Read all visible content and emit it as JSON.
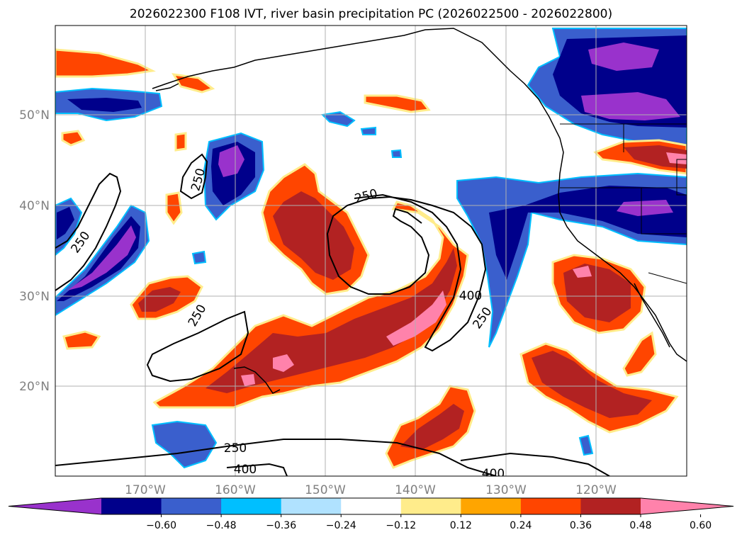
{
  "title": "2026022300 F108 IVT, river basin precipitation PC (2026022500 - 2026022800)",
  "map": {
    "lat_labels": [
      "50°N",
      "40°N",
      "30°N",
      "20°N"
    ],
    "lon_labels": [
      "170°W",
      "160°W",
      "150°W",
      "140°W",
      "130°W",
      "120°W"
    ],
    "contour_labels": [
      "250",
      "250",
      "250",
      "250",
      "250",
      "250",
      "400",
      "400",
      "400"
    ],
    "grid": true
  },
  "colorbar": {
    "ticks": [
      "−0.60",
      "−0.48",
      "−0.36",
      "−0.24",
      "−0.12",
      "0.12",
      "0.24",
      "0.36",
      "0.48",
      "0.60"
    ],
    "colors": [
      "#9932cc",
      "#00008b",
      "#3a5fcd",
      "#00bfff",
      "#b0e2ff",
      "#ffffff",
      "#ffec8b",
      "#ffa500",
      "#ff4500",
      "#b22222",
      "#ff82ab"
    ],
    "extend": "both"
  }
}
